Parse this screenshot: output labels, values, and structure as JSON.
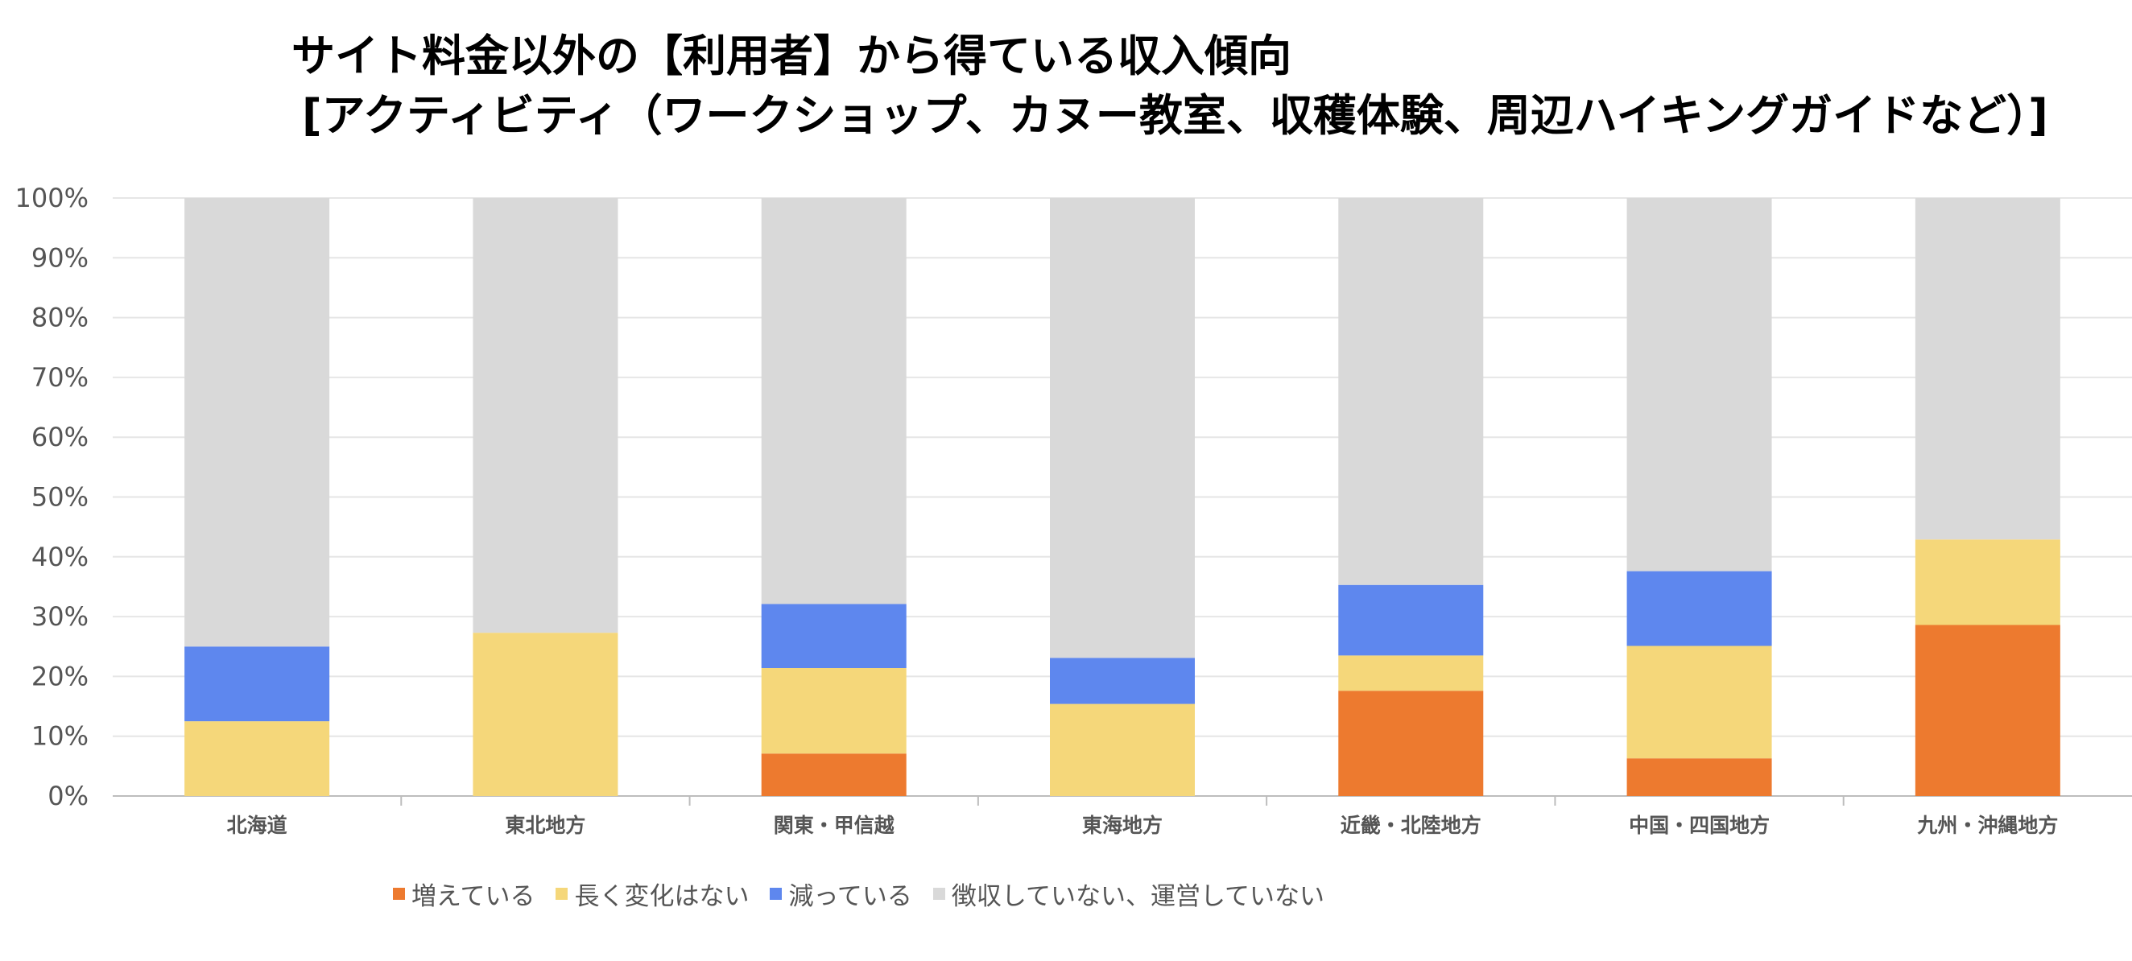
{
  "chart_data": {
    "type": "bar",
    "stacked": true,
    "title": "サイト料金以外の【利用者】から得ている収入傾向",
    "subtitle": "[アクティビティ（ワークショップ、カヌー教室、収穫体験、周辺ハイキングガイドなど）]",
    "xlabel": "",
    "ylabel": "",
    "ylim": [
      0,
      100
    ],
    "y_ticks": [
      "0%",
      "10%",
      "20%",
      "30%",
      "40%",
      "50%",
      "60%",
      "70%",
      "80%",
      "90%",
      "100%"
    ],
    "grid": true,
    "legend_position": "bottom",
    "categories": [
      "北海道",
      "東北地方",
      "関東・甲信越",
      "東海地方",
      "近畿・北陸地方",
      "中国・四国地方",
      "九州・沖縄地方"
    ],
    "series": [
      {
        "name": "増えている",
        "color": "#ED7A2F",
        "values": [
          0,
          0,
          7.1,
          0,
          17.6,
          6.3,
          28.6
        ]
      },
      {
        "name": "長く変化はない",
        "color": "#F5D77A",
        "values": [
          12.5,
          27.3,
          14.3,
          15.4,
          5.9,
          18.8,
          14.3
        ]
      },
      {
        "name": "減っている",
        "color": "#5E87EE",
        "values": [
          12.5,
          0,
          10.7,
          7.7,
          11.8,
          12.5,
          0
        ]
      },
      {
        "name": "徴収していない、運営していない",
        "color": "#D9D9D9",
        "values": [
          75,
          72.7,
          67.9,
          76.9,
          64.7,
          62.4,
          57.1
        ]
      }
    ]
  }
}
